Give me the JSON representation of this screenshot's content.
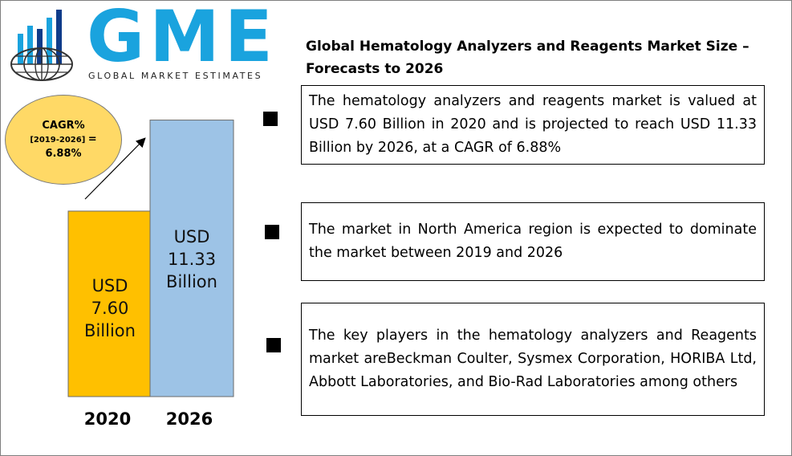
{
  "logo": {
    "text": "GME",
    "subtitle": "GLOBAL MARKET ESTIMATES",
    "brand_color": "#1aa3de"
  },
  "title": "Global Hematology Analyzers and Reagents Market Size – Forecasts to 2026",
  "cagr": {
    "line1": "CAGR%",
    "line2": "[2019-2026]",
    "equals": "=",
    "value": "6.88%",
    "color": "#ffd966"
  },
  "chart_data": {
    "type": "bar",
    "categories": [
      "2020",
      "2026"
    ],
    "values": [
      7.6,
      11.33
    ],
    "value_labels": [
      "USD 7.60 Billion",
      "USD 11.33 Billion"
    ],
    "unit": "USD Billion",
    "colors": [
      "#ffc000",
      "#9dc3e6"
    ]
  },
  "facts": [
    {
      "text": "The hematology analyzers and reagents market is valued at USD 7.60 Billion in 2020 and is projected to reach USD 11.33 Billion by 2026, at a CAGR of 6.88%"
    },
    {
      "text": "The market in North America region is expected to dominate the market between 2019 and 2026"
    },
    {
      "text": "The key players in the hematology analyzers and Reagents market areBeckman Coulter, Sysmex Corporation, HORIBA Ltd, Abbott Laboratories, and Bio-Rad Laboratories among others"
    }
  ]
}
